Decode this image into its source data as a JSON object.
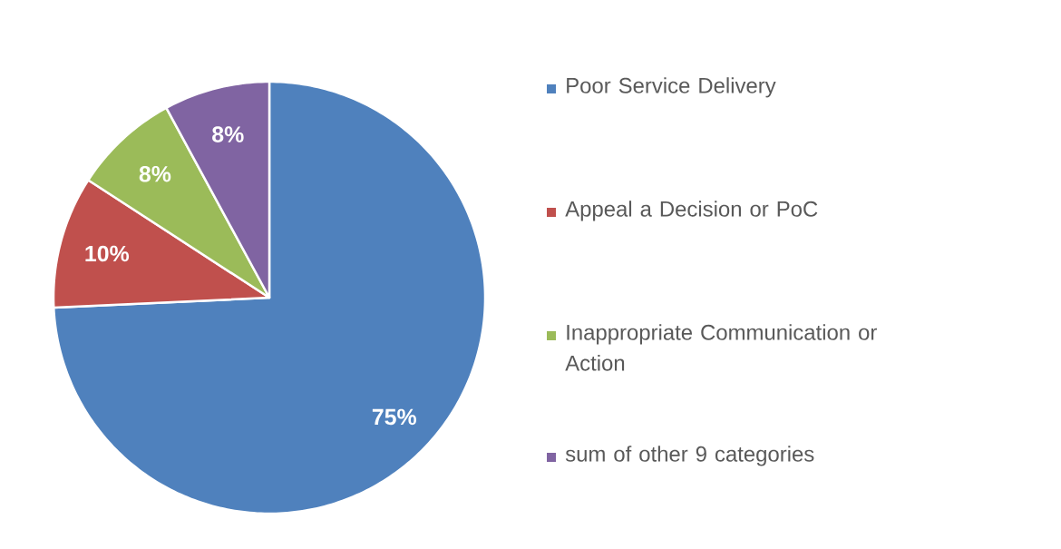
{
  "chart_data": {
    "type": "pie",
    "categories": [
      "Poor Service Delivery",
      "Appeal a Decision or PoC",
      "Inappropriate Communication or Action",
      "sum of other 9 categories"
    ],
    "values": [
      75,
      10,
      8,
      8
    ],
    "colors": [
      "#4f81bd",
      "#c0504d",
      "#9bbb59",
      "#8064a2"
    ],
    "data_labels": true,
    "value_labels": [
      "75%",
      "10%",
      "8%",
      "8%"
    ],
    "legend": "right"
  }
}
